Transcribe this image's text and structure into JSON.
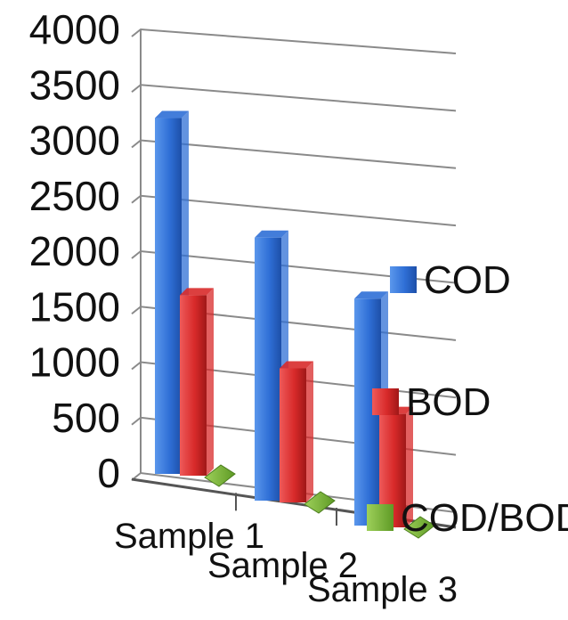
{
  "chart_data": {
    "type": "bar",
    "view": "3d-clustered-column",
    "categories": [
      "Sample 1",
      "Sample 2",
      "Sample 3"
    ],
    "series": [
      {
        "name": "COD",
        "values": [
          3450,
          2550,
          2200
        ],
        "color": "#2f6fd6"
      },
      {
        "name": "BOD",
        "values": [
          1750,
          1300,
          1100
        ],
        "color": "#d82a2a"
      },
      {
        "name": "COD/BOD",
        "values": [
          2,
          2,
          2
        ],
        "color": "#7fb83a"
      }
    ],
    "ylim": [
      0,
      4000
    ],
    "yticks": [
      "0",
      "500",
      "1000",
      "1500",
      "2000",
      "2500",
      "3000",
      "3500",
      "4000"
    ],
    "grid": true,
    "legend": "right",
    "title": "",
    "xlabel": "",
    "ylabel": ""
  }
}
